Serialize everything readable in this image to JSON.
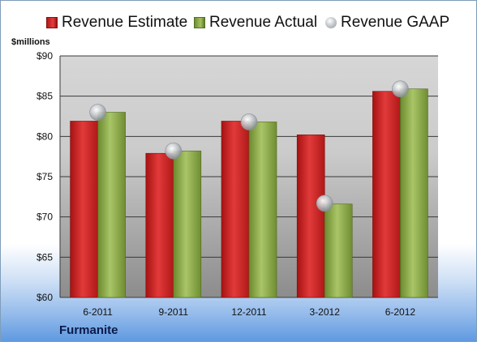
{
  "chart_data": {
    "type": "bar",
    "unit_label": "$millions",
    "categories": [
      "6-2011",
      "9-2011",
      "12-2011",
      "3-2012",
      "6-2012"
    ],
    "series": [
      {
        "name": "Revenue Estimate",
        "kind": "bar",
        "color": "#d22b2b",
        "values": [
          81.9,
          77.9,
          81.9,
          80.2,
          85.6
        ]
      },
      {
        "name": "Revenue Actual",
        "kind": "bar",
        "color": "#8cab4c",
        "values": [
          83.0,
          78.2,
          81.8,
          71.6,
          85.9
        ]
      },
      {
        "name": "Revenue GAAP",
        "kind": "marker",
        "color": "#b8bcc0",
        "values": [
          83.0,
          78.2,
          81.8,
          71.7,
          85.9
        ]
      }
    ],
    "ylim": [
      60,
      90
    ],
    "yticks": [
      60,
      65,
      70,
      75,
      80,
      85,
      90
    ],
    "ytick_labels": [
      "$60",
      "$65",
      "$70",
      "$75",
      "$80",
      "$85",
      "$90"
    ],
    "grid": true,
    "legend_position": "top",
    "xlabel": "",
    "ylabel": ""
  },
  "footer": {
    "company": "Furmanite"
  }
}
